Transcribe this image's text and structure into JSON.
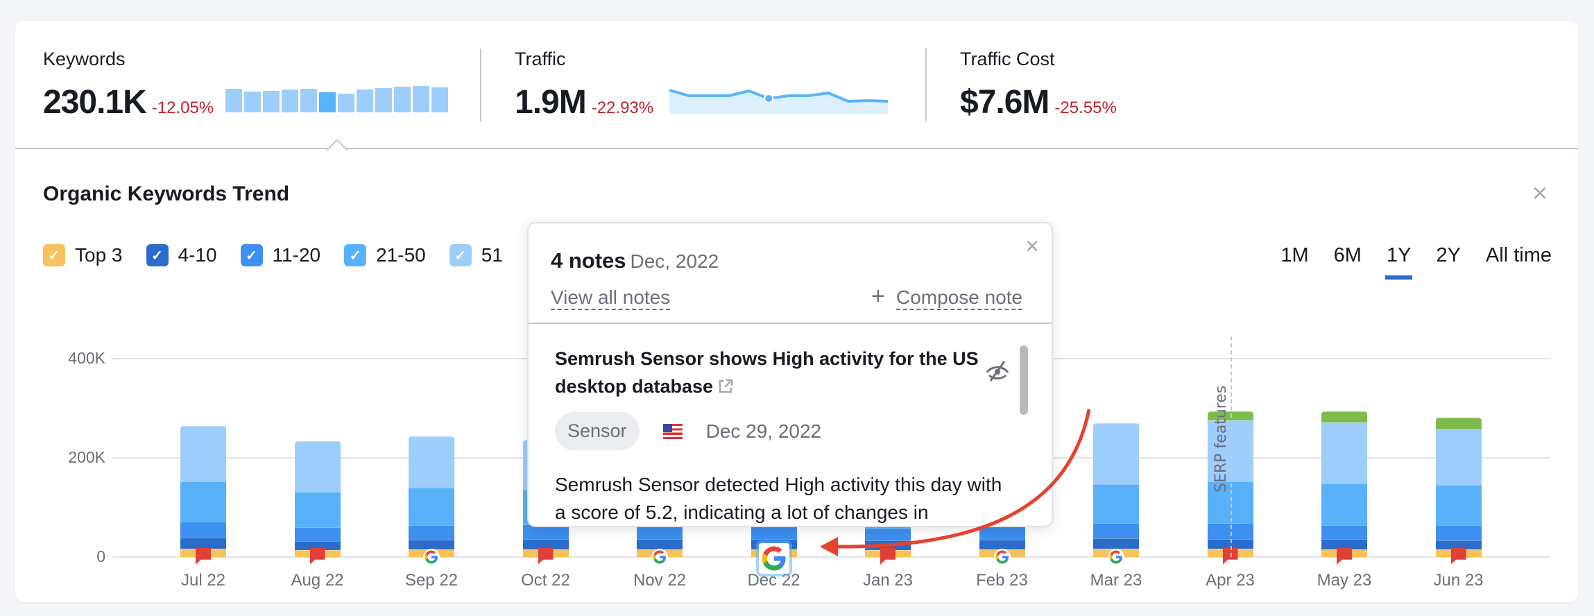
{
  "summary": {
    "metrics": [
      {
        "label": "Keywords",
        "value": "230.1K",
        "delta": "-12.05%"
      },
      {
        "label": "Traffic",
        "value": "1.9M",
        "delta": "-22.93%"
      },
      {
        "label": "Traffic Cost",
        "value": "$7.6M",
        "delta": "-25.55%"
      }
    ],
    "keywords_sparkline": [
      108,
      96,
      98,
      104,
      106,
      93,
      85,
      104,
      110,
      118,
      119,
      113
    ],
    "keywords_sparkline_active_index": 5,
    "traffic_sparkline": [
      34,
      26,
      26,
      26,
      33,
      22,
      26,
      26,
      30,
      18,
      19,
      18
    ],
    "traffic_sparkline_active_index": 5
  },
  "trend": {
    "title": "Organic Keywords Trend",
    "close_icon": "close-icon",
    "legend": [
      {
        "label": "Top 3",
        "color": "#f7c25c",
        "checked": true
      },
      {
        "label": "4-10",
        "color": "#2b6ccb",
        "checked": true
      },
      {
        "label": "11-20",
        "color": "#3d8ff0",
        "checked": true
      },
      {
        "label": "21-50",
        "color": "#58b1f9",
        "checked": true
      },
      {
        "label": "51",
        "color": "#9ccdfb",
        "checked": true
      }
    ],
    "periods": [
      {
        "label": "1M",
        "active": false
      },
      {
        "label": "6M",
        "active": false
      },
      {
        "label": "1Y",
        "active": true
      },
      {
        "label": "2Y",
        "active": false
      },
      {
        "label": "All time",
        "active": false
      }
    ],
    "serp_label": "SERP features"
  },
  "chart_data": {
    "type": "bar",
    "stacked": true,
    "title": "Organic Keywords Trend",
    "categories": [
      "Jul 22",
      "Aug 22",
      "Sep 22",
      "Oct 22",
      "Nov 22",
      "Dec 22",
      "Jan 23",
      "Feb 23",
      "Mar 23",
      "Apr 23",
      "May 23",
      "Jun 23"
    ],
    "yticks": [
      "0",
      "200K",
      "400K"
    ],
    "ylim": [
      0,
      400000
    ],
    "grid": true,
    "series": [
      {
        "name": "Top 3",
        "color": "#f7c25c",
        "values": [
          17000,
          14000,
          16000,
          16000,
          16000,
          16000,
          14000,
          15000,
          17000,
          17000,
          15000,
          15000
        ]
      },
      {
        "name": "4-10",
        "color": "#2b6ccb",
        "values": [
          22000,
          18000,
          19000,
          20000,
          20000,
          20000,
          19000,
          20000,
          21000,
          20000,
          21000,
          18000
        ]
      },
      {
        "name": "11-20",
        "color": "#3d8ff0",
        "values": [
          32000,
          28000,
          30000,
          30000,
          30000,
          30000,
          24000,
          26000,
          31000,
          32000,
          29000,
          32000
        ]
      },
      {
        "name": "21-50",
        "color": "#58b1f9",
        "values": [
          81000,
          72000,
          75000,
          70000,
          70000,
          70000,
          70000,
          70000,
          78000,
          83000,
          83000,
          80000
        ]
      },
      {
        "name": "51-100",
        "color": "#9ccdfb",
        "values": [
          112000,
          102000,
          103000,
          100000,
          100000,
          100000,
          100000,
          100000,
          123000,
          124000,
          124000,
          112000
        ]
      },
      {
        "name": "SERP features",
        "color": "#7dbc4a",
        "values": [
          0,
          0,
          0,
          0,
          0,
          0,
          0,
          0,
          0,
          18000,
          22000,
          24000
        ]
      }
    ],
    "markers": [
      "flag",
      "flag",
      "google",
      "flag",
      "google",
      "google-highlight",
      "flag",
      "google",
      "google",
      "flag",
      "flag",
      "flag"
    ],
    "annotations": [
      {
        "x": "Apr 23",
        "label": "SERP features",
        "style": "dashed-vertical"
      }
    ]
  },
  "popup": {
    "count_label": "4 notes",
    "date_label": "Dec, 2022",
    "view_all": "View all notes",
    "compose": "Compose note",
    "note": {
      "title": "Semrush Sensor shows High activity for the US desktop database",
      "tag": "Sensor",
      "country": "US",
      "date": "Dec 29, 2022",
      "body": "Semrush Sensor detected High activity this day with a score of 5.2, indicating a lot of changes in"
    }
  }
}
